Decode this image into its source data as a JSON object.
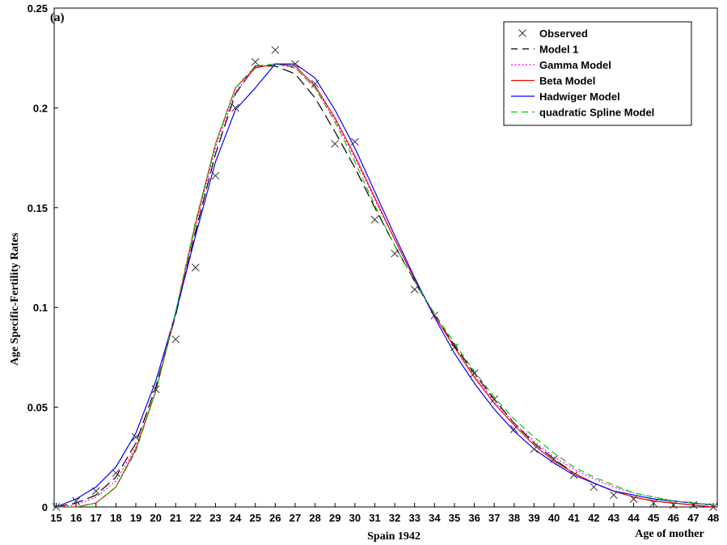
{
  "chart_data": {
    "type": "line",
    "panel_label": "(a)",
    "xlabel": "Spain 1942",
    "x_axis_end_label": "Age of mother",
    "ylabel": "Age Specific-Fertility Rates",
    "xlim": [
      14.9,
      48.2
    ],
    "ylim": [
      0,
      0.25
    ],
    "grid": false,
    "legend_position": "top-right",
    "x": [
      15,
      16,
      17,
      18,
      19,
      20,
      21,
      22,
      23,
      24,
      25,
      26,
      27,
      28,
      29,
      30,
      31,
      32,
      33,
      34,
      35,
      36,
      37,
      38,
      39,
      40,
      41,
      42,
      43,
      44,
      45,
      46,
      47,
      48
    ],
    "x_tick_labels": [
      "15",
      "16",
      "17",
      "18",
      "19",
      "20",
      "21",
      "22",
      "23",
      "24",
      "25",
      "26",
      "27",
      "28",
      "29",
      "30",
      "31",
      "32",
      "33",
      "34",
      "35",
      "36",
      "37",
      "38",
      "39",
      "40",
      "41",
      "42",
      "43",
      "44",
      "45",
      "46",
      "47",
      "48"
    ],
    "y_ticks": [
      0,
      0.05,
      0.1,
      0.15,
      0.2,
      0.25
    ],
    "y_tick_labels": [
      "0",
      "0.05",
      "0.1",
      "0.15",
      "0.2",
      "0.25"
    ],
    "series": [
      {
        "name": "Observed",
        "style": "marker-x",
        "color": "#333333",
        "values": [
          0.0,
          0.003,
          0.008,
          0.017,
          0.035,
          0.059,
          0.084,
          0.12,
          0.166,
          0.2,
          0.223,
          0.229,
          0.222,
          0.212,
          0.182,
          0.183,
          0.144,
          0.127,
          0.109,
          0.096,
          0.08,
          0.067,
          0.054,
          0.039,
          0.029,
          0.024,
          0.016,
          0.01,
          0.006,
          0.004,
          0.002,
          0.001,
          0.001,
          0.0
        ]
      },
      {
        "name": "Model 1",
        "style": "long-dash",
        "color": "#000000",
        "values": [
          0.0,
          0.002,
          0.006,
          0.015,
          0.032,
          0.06,
          0.096,
          0.138,
          0.177,
          0.207,
          0.221,
          0.221,
          0.217,
          0.205,
          0.188,
          0.17,
          0.15,
          0.131,
          0.113,
          0.096,
          0.081,
          0.067,
          0.054,
          0.042,
          0.032,
          0.024,
          0.017,
          0.012,
          0.008,
          0.005,
          0.003,
          0.002,
          0.001,
          0.0
        ]
      },
      {
        "name": "Gamma Model",
        "style": "dotted",
        "color": "#ff00ff",
        "values": [
          0.0,
          0.001,
          0.005,
          0.013,
          0.03,
          0.058,
          0.097,
          0.141,
          0.18,
          0.208,
          0.22,
          0.222,
          0.22,
          0.21,
          0.194,
          0.175,
          0.154,
          0.134,
          0.114,
          0.096,
          0.08,
          0.066,
          0.053,
          0.042,
          0.033,
          0.025,
          0.019,
          0.014,
          0.01,
          0.007,
          0.005,
          0.003,
          0.002,
          0.001
        ]
      },
      {
        "name": "Beta Model",
        "style": "solid",
        "color": "#ff0000",
        "values": [
          0.0,
          0.0,
          0.002,
          0.01,
          0.029,
          0.058,
          0.097,
          0.142,
          0.182,
          0.21,
          0.22,
          0.222,
          0.221,
          0.211,
          0.195,
          0.176,
          0.155,
          0.134,
          0.114,
          0.096,
          0.08,
          0.065,
          0.052,
          0.041,
          0.031,
          0.023,
          0.017,
          0.012,
          0.008,
          0.005,
          0.003,
          0.002,
          0.001,
          0.0
        ]
      },
      {
        "name": "Hadwiger Model",
        "style": "solid",
        "color": "#0000ff",
        "values": [
          0.0,
          0.004,
          0.01,
          0.02,
          0.037,
          0.063,
          0.097,
          0.136,
          0.173,
          0.199,
          0.21,
          0.222,
          0.222,
          0.215,
          0.199,
          0.18,
          0.158,
          0.136,
          0.115,
          0.095,
          0.077,
          0.062,
          0.049,
          0.038,
          0.029,
          0.022,
          0.016,
          0.012,
          0.008,
          0.006,
          0.004,
          0.003,
          0.002,
          0.001
        ]
      },
      {
        "name": "quadratic Spline Model",
        "style": "dash",
        "color": "#00cc00",
        "values": [
          0.0,
          0.0,
          0.002,
          0.01,
          0.028,
          0.058,
          0.098,
          0.143,
          0.182,
          0.21,
          0.221,
          0.222,
          0.22,
          0.21,
          0.193,
          0.173,
          0.151,
          0.131,
          0.113,
          0.097,
          0.082,
          0.068,
          0.055,
          0.044,
          0.035,
          0.027,
          0.02,
          0.015,
          0.011,
          0.007,
          0.005,
          0.003,
          0.002,
          0.001
        ]
      }
    ]
  }
}
